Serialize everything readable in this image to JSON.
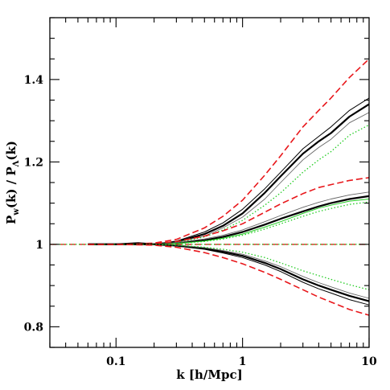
{
  "chart_data": {
    "type": "line",
    "xlabel": "k [h/Mpc]",
    "ylabel": "P_w(k) / P_Λ(k)",
    "ylabel_parts": {
      "p1": "P",
      "sub1": "w",
      "mid": "(k) / P",
      "sub2": "Λ",
      "end": "(k)"
    },
    "xscale": "log",
    "xlim": [
      0.03,
      10
    ],
    "ylim": [
      0.75,
      1.55
    ],
    "grid": false,
    "xticks": [
      {
        "value": 0.1,
        "label": "0.1"
      },
      {
        "value": 1,
        "label": "1"
      },
      {
        "value": 10,
        "label": "10"
      }
    ],
    "yticks": [
      {
        "value": 0.8,
        "label": "0.8"
      },
      {
        "value": 1.0,
        "label": "1"
      },
      {
        "value": 1.2,
        "label": "1.2"
      },
      {
        "value": 1.4,
        "label": "1.4"
      }
    ],
    "colors": {
      "black": "#000000",
      "gray": "#666666",
      "red": "#e8171b",
      "green": "#22cc22"
    },
    "series": [
      {
        "color": "#000000",
        "style": "solid",
        "width": 2.2,
        "x": [
          0.06,
          0.1,
          0.15,
          0.2,
          0.3,
          0.5,
          0.7,
          1,
          1.5,
          2,
          3,
          4,
          5,
          7,
          10
        ],
        "y": [
          1.0,
          1.0,
          1.003,
          1.0,
          1.006,
          1.025,
          1.045,
          1.075,
          1.125,
          1.165,
          1.22,
          1.25,
          1.27,
          1.31,
          1.34
        ]
      },
      {
        "color": "#000000",
        "style": "solid",
        "width": 1,
        "x": [
          0.06,
          0.1,
          0.2,
          0.3,
          0.5,
          0.7,
          1,
          1.5,
          2,
          3,
          4,
          5,
          7,
          10
        ],
        "y": [
          1.0,
          1.0,
          1.0,
          1.008,
          1.03,
          1.052,
          1.085,
          1.135,
          1.175,
          1.232,
          1.262,
          1.285,
          1.325,
          1.355
        ]
      },
      {
        "color": "#666666",
        "style": "solid",
        "width": 0.9,
        "x": [
          0.06,
          0.1,
          0.2,
          0.3,
          0.5,
          0.7,
          1,
          1.5,
          2,
          3,
          4,
          5,
          7,
          10
        ],
        "y": [
          1.0,
          1.0,
          1.0,
          1.005,
          1.02,
          1.04,
          1.066,
          1.11,
          1.15,
          1.205,
          1.235,
          1.255,
          1.295,
          1.32
        ]
      },
      {
        "color": "#22cc22",
        "style": "dotted",
        "width": 1.3,
        "x": [
          0.06,
          0.1,
          0.2,
          0.3,
          0.5,
          0.7,
          1,
          1.5,
          2,
          3,
          4,
          5,
          7,
          10
        ],
        "y": [
          1.0,
          1.0,
          1.0,
          1.004,
          1.018,
          1.035,
          1.058,
          1.095,
          1.125,
          1.175,
          1.205,
          1.225,
          1.265,
          1.29
        ]
      },
      {
        "color": "#e8171b",
        "style": "dashed",
        "width": 1.6,
        "x": [
          0.06,
          0.1,
          0.2,
          0.3,
          0.5,
          0.7,
          1,
          1.5,
          2,
          3,
          4,
          5,
          7,
          10
        ],
        "y": [
          1.0,
          1.0,
          1.003,
          1.012,
          1.04,
          1.068,
          1.107,
          1.168,
          1.215,
          1.285,
          1.325,
          1.355,
          1.405,
          1.45
        ]
      },
      {
        "color": "#000000",
        "style": "solid",
        "width": 2.2,
        "x": [
          0.06,
          0.1,
          0.2,
          0.3,
          0.5,
          0.7,
          1,
          1.5,
          2,
          3,
          4,
          5,
          7,
          10
        ],
        "y": [
          1.0,
          1.0,
          1.0,
          1.003,
          1.01,
          1.018,
          1.03,
          1.048,
          1.062,
          1.08,
          1.092,
          1.1,
          1.11,
          1.117
        ]
      },
      {
        "color": "#666666",
        "style": "solid",
        "width": 0.9,
        "x": [
          0.06,
          0.1,
          0.2,
          0.3,
          0.5,
          0.7,
          1,
          1.5,
          2,
          3,
          4,
          5,
          7,
          10
        ],
        "y": [
          1.0,
          1.0,
          1.0,
          1.004,
          1.013,
          1.022,
          1.035,
          1.055,
          1.07,
          1.09,
          1.102,
          1.11,
          1.12,
          1.127
        ]
      },
      {
        "color": "#22cc22",
        "style": "solid",
        "width": 1,
        "x": [
          0.06,
          0.1,
          0.2,
          0.3,
          0.5,
          0.7,
          1,
          1.5,
          2,
          3,
          4,
          5,
          7,
          10
        ],
        "y": [
          1.0,
          1.0,
          1.0,
          1.002,
          1.008,
          1.015,
          1.025,
          1.042,
          1.055,
          1.075,
          1.088,
          1.095,
          1.105,
          1.11
        ]
      },
      {
        "color": "#22cc22",
        "style": "dotted",
        "width": 1.3,
        "x": [
          0.06,
          0.1,
          0.2,
          0.3,
          0.5,
          0.7,
          1,
          1.5,
          2,
          3,
          4,
          5,
          7,
          10
        ],
        "y": [
          1.0,
          1.0,
          1.0,
          1.002,
          1.007,
          1.013,
          1.022,
          1.037,
          1.05,
          1.068,
          1.08,
          1.087,
          1.097,
          1.103
        ]
      },
      {
        "color": "#e8171b",
        "style": "dashed",
        "width": 1.6,
        "x": [
          0.06,
          0.1,
          0.2,
          0.3,
          0.5,
          0.7,
          1,
          1.5,
          2,
          3,
          4,
          5,
          7,
          10
        ],
        "y": [
          1.0,
          1.0,
          1.002,
          1.007,
          1.02,
          1.033,
          1.05,
          1.078,
          1.098,
          1.123,
          1.138,
          1.145,
          1.155,
          1.162
        ]
      },
      {
        "color": "#e8171b",
        "style": "dashed",
        "width": 1.4,
        "x": [
          0.03,
          0.1,
          1,
          10
        ],
        "y": [
          1.0,
          1.0,
          1.0,
          1.0
        ]
      },
      {
        "color": "#22cc22",
        "style": "dotted",
        "width": 1.2,
        "x": [
          0.03,
          0.1,
          1,
          10
        ],
        "y": [
          1.0,
          1.0,
          1.0,
          1.0
        ]
      },
      {
        "color": "#000000",
        "style": "solid",
        "width": 2.2,
        "x": [
          0.06,
          0.1,
          0.2,
          0.3,
          0.5,
          0.7,
          1,
          1.5,
          2,
          3,
          4,
          5,
          7,
          10
        ],
        "y": [
          1.0,
          1.0,
          1.0,
          0.997,
          0.99,
          0.982,
          0.972,
          0.955,
          0.94,
          0.915,
          0.9,
          0.89,
          0.875,
          0.862
        ]
      },
      {
        "color": "#666666",
        "style": "solid",
        "width": 0.9,
        "x": [
          0.06,
          0.1,
          0.2,
          0.3,
          0.5,
          0.7,
          1,
          1.5,
          2,
          3,
          4,
          5,
          7,
          10
        ],
        "y": [
          1.0,
          1.0,
          1.0,
          0.998,
          0.992,
          0.985,
          0.976,
          0.96,
          0.946,
          0.922,
          0.907,
          0.897,
          0.882,
          0.869
        ]
      },
      {
        "color": "#000000",
        "style": "solid",
        "width": 1,
        "x": [
          0.06,
          0.1,
          0.2,
          0.3,
          0.5,
          0.7,
          1,
          1.5,
          2,
          3,
          4,
          5,
          7,
          10
        ],
        "y": [
          1.0,
          1.0,
          1.0,
          0.996,
          0.988,
          0.979,
          0.968,
          0.95,
          0.934,
          0.908,
          0.892,
          0.882,
          0.866,
          0.853
        ]
      },
      {
        "color": "#22cc22",
        "style": "dotted",
        "width": 1.3,
        "x": [
          0.06,
          0.1,
          0.2,
          0.3,
          0.5,
          0.7,
          1,
          1.5,
          2,
          3,
          4,
          5,
          7,
          10
        ],
        "y": [
          1.0,
          1.0,
          1.0,
          0.998,
          0.993,
          0.988,
          0.981,
          0.968,
          0.955,
          0.936,
          0.924,
          0.915,
          0.902,
          0.89
        ]
      },
      {
        "color": "#e8171b",
        "style": "dashed",
        "width": 1.6,
        "x": [
          0.06,
          0.1,
          0.2,
          0.3,
          0.5,
          0.7,
          1,
          1.5,
          2,
          3,
          4,
          5,
          7,
          10
        ],
        "y": [
          1.0,
          1.0,
          0.998,
          0.993,
          0.98,
          0.968,
          0.953,
          0.932,
          0.915,
          0.89,
          0.872,
          0.86,
          0.842,
          0.828
        ]
      }
    ]
  }
}
